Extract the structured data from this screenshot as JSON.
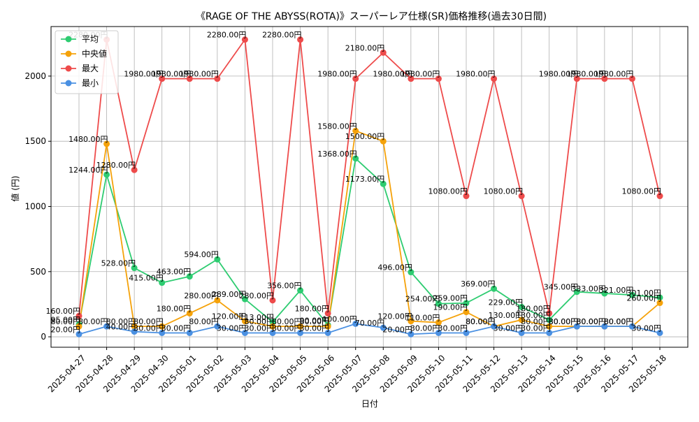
{
  "chart_data": {
    "type": "line",
    "title": "《RAGE OF THE ABYSS(ROTA)》スーパーレア仕様(SR)価格推移(過去30日間)",
    "xlabel": "日付",
    "ylabel": "値 (円)",
    "ylim": [
      -80,
      2380
    ],
    "yticks": [
      0,
      500,
      1000,
      1500,
      2000
    ],
    "grid": true,
    "legend_position": "top-left",
    "value_suffix": "円",
    "categories": [
      "2025-04-27",
      "2025-04-28",
      "2025-04-29",
      "2025-04-30",
      "2025-05-01",
      "2025-05-02",
      "2025-05-03",
      "2025-05-04",
      "2025-05-05",
      "2025-05-06",
      "2025-05-07",
      "2025-05-08",
      "2025-05-09",
      "2025-05-10",
      "2025-05-11",
      "2025-05-12",
      "2025-05-13",
      "2025-05-14",
      "2025-05-15",
      "2025-05-16",
      "2025-05-17",
      "2025-05-18"
    ],
    "series": [
      {
        "name": "平均",
        "color": "#2ecc71",
        "values": [
          95,
          1244,
          528,
          415,
          463,
          594,
          289,
          113,
          356,
          90,
          1368,
          1173,
          496,
          254,
          259,
          369,
          229,
          130,
          345,
          333,
          321,
          301
        ]
      },
      {
        "name": "中央値",
        "color": "#f5a20a",
        "values": [
          80,
          1480,
          80,
          80,
          180,
          280,
          120,
          80,
          80,
          80,
          1580,
          1500,
          120,
          110,
          190,
          80,
          130,
          80,
          80,
          80,
          80,
          260
        ]
      },
      {
        "name": "最大",
        "color": "#ee4b4b",
        "values": [
          160,
          2280,
          1280,
          1980,
          1980,
          1980,
          2280,
          280,
          2280,
          180,
          1980,
          2180,
          1980,
          1980,
          1080,
          1980,
          1080,
          180,
          1980,
          1980,
          1980,
          1080
        ]
      },
      {
        "name": "最小",
        "color": "#4a90e2",
        "values": [
          20,
          80,
          40,
          30,
          30,
          80,
          30,
          30,
          30,
          30,
          100,
          70,
          20,
          30,
          30,
          80,
          30,
          30,
          80,
          80,
          80,
          30
        ]
      }
    ]
  }
}
